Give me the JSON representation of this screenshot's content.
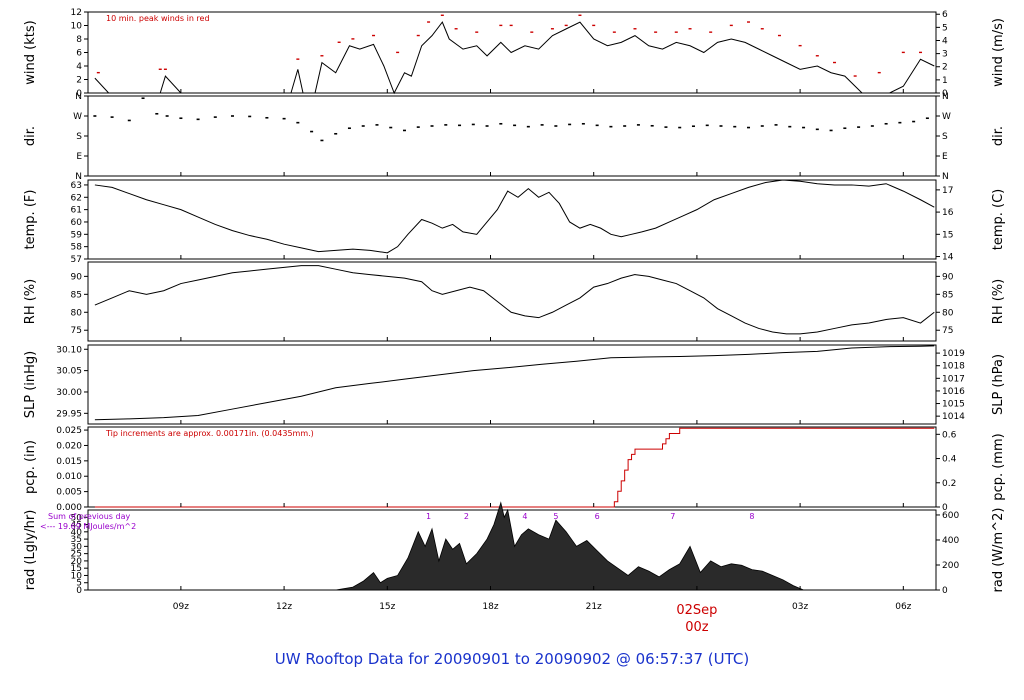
{
  "chart_data": {
    "type": "line",
    "title": "UW Rooftop Data for 20090901  to  20090902 @ 06:57:37  (UTC)",
    "x_ticks": [
      "09z",
      "12z",
      "15z",
      "18z",
      "21z",
      "02Sep",
      "03z",
      "06z"
    ],
    "x_sublabel": "00z",
    "panels": [
      {
        "id": "wind",
        "ylabel": "wind (kts)",
        "ylabel_right": "wind (m/s)",
        "ylim": [
          0,
          12
        ],
        "yticks": [
          0,
          2,
          4,
          6,
          8,
          10,
          12
        ],
        "yticks_right": [
          0,
          1,
          2,
          3,
          4,
          5,
          6
        ],
        "annotation": "10 min. peak winds in red",
        "series": [
          {
            "name": "wind",
            "color": "#000000",
            "x": [
              6.5,
              6.9,
              7.4,
              8.0,
              8.4,
              8.55,
              9.0,
              9.55,
              10.0,
              11.0,
              12.2,
              12.4,
              12.55,
              12.9,
              13.1,
              13.5,
              13.9,
              14.2,
              14.6,
              14.9,
              15.2,
              15.5,
              15.7,
              16.0,
              16.3,
              16.6,
              16.8,
              17.2,
              17.6,
              17.9,
              18.3,
              18.6,
              19.0,
              19.4,
              19.8,
              20.2,
              20.6,
              21.0,
              21.4,
              21.8,
              22.2,
              22.6,
              23.0,
              23.4,
              23.8,
              24.2,
              24.6,
              25.0,
              25.4,
              25.8,
              26.2,
              26.6,
              27.0,
              27.5,
              27.9,
              28.3,
              28.8,
              29.2,
              29.6,
              30.0,
              30.5,
              30.9
            ],
            "y": [
              2.2,
              0,
              0,
              0,
              0,
              2.5,
              0,
              0,
              0,
              0,
              0,
              3.5,
              0,
              0,
              4.5,
              3.0,
              7.0,
              6.5,
              7.2,
              4.0,
              0,
              3.0,
              2.5,
              7.0,
              8.5,
              10.5,
              8.0,
              6.5,
              7.0,
              5.5,
              7.5,
              6.0,
              7.0,
              6.5,
              8.5,
              9.5,
              10.5,
              8.0,
              7.0,
              7.5,
              8.5,
              7.0,
              6.5,
              7.5,
              7.0,
              6.0,
              7.5,
              8.0,
              7.5,
              6.5,
              5.5,
              4.5,
              3.5,
              4.0,
              3.0,
              2.5,
              0,
              0,
              0,
              1.0,
              5.0,
              4.0
            ]
          },
          {
            "name": "peak",
            "color": "#cc0000",
            "x": [
              6.6,
              8.4,
              8.55,
              12.4,
              13.1,
              13.6,
              14.0,
              14.6,
              15.3,
              15.9,
              16.2,
              16.6,
              17.0,
              17.6,
              18.3,
              18.6,
              19.2,
              19.8,
              20.2,
              20.6,
              21.0,
              21.6,
              22.2,
              22.8,
              23.4,
              23.8,
              24.4,
              25.0,
              25.5,
              25.9,
              26.4,
              27.0,
              27.5,
              28.0,
              28.6,
              29.3,
              30.0,
              30.5
            ],
            "y": [
              3.0,
              3.5,
              3.5,
              5.0,
              5.5,
              7.5,
              8.0,
              8.5,
              6.0,
              8.5,
              10.5,
              11.5,
              9.5,
              9.0,
              10.0,
              10.0,
              9.0,
              9.5,
              10.0,
              11.5,
              10.0,
              9.0,
              9.5,
              9.0,
              9.0,
              9.5,
              9.0,
              10.0,
              10.5,
              9.5,
              8.5,
              7.0,
              5.5,
              4.5,
              2.5,
              3.0,
              6.0,
              6.0
            ]
          }
        ]
      },
      {
        "id": "dir",
        "ylabel": "dir.",
        "ylabel_right": "dir.",
        "ylim": [
          0,
          360
        ],
        "yticks": [
          "N",
          "E",
          "S",
          "W",
          "N"
        ],
        "yticks_values": [
          0,
          90,
          180,
          270,
          360
        ],
        "series": [
          {
            "name": "direction",
            "color": "#000000",
            "x": [
              6.5,
              7.0,
              7.5,
              7.9,
              8.3,
              8.6,
              9.0,
              9.5,
              10.0,
              10.5,
              11.0,
              11.5,
              12.0,
              12.4,
              12.8,
              13.1,
              13.5,
              13.9,
              14.3,
              14.7,
              15.1,
              15.5,
              15.9,
              16.3,
              16.7,
              17.1,
              17.5,
              17.9,
              18.3,
              18.7,
              19.1,
              19.5,
              19.9,
              20.3,
              20.7,
              21.1,
              21.5,
              21.9,
              22.3,
              22.7,
              23.1,
              23.5,
              23.9,
              24.3,
              24.7,
              25.1,
              25.5,
              25.9,
              26.3,
              26.7,
              27.1,
              27.5,
              27.9,
              28.3,
              28.7,
              29.1,
              29.5,
              29.9,
              30.3,
              30.7
            ],
            "y": [
              270,
              265,
              250,
              350,
              280,
              270,
              260,
              255,
              265,
              270,
              268,
              262,
              258,
              240,
              200,
              160,
              190,
              215,
              225,
              230,
              218,
              205,
              220,
              225,
              230,
              228,
              232,
              225,
              235,
              228,
              222,
              230,
              225,
              232,
              235,
              228,
              222,
              225,
              230,
              226,
              220,
              218,
              224,
              228,
              225,
              222,
              218,
              225,
              230,
              222,
              218,
              210,
              205,
              215,
              220,
              225,
              235,
              240,
              245,
              260
            ]
          }
        ]
      },
      {
        "id": "temp",
        "ylabel": "temp. (F)",
        "ylabel_right": "temp. (C)",
        "ylim": [
          57,
          63.4
        ],
        "yticks": [
          57,
          58,
          59,
          60,
          61,
          62,
          63
        ],
        "yticks_right": [
          14,
          15,
          16,
          17
        ],
        "series": [
          {
            "name": "temperature",
            "color": "#000000",
            "x": [
              6.5,
              7.0,
              7.5,
              8.0,
              8.5,
              9.0,
              9.5,
              10.0,
              10.5,
              11.0,
              11.5,
              12.0,
              12.5,
              13.0,
              13.5,
              14.0,
              14.5,
              15.0,
              15.3,
              15.6,
              16.0,
              16.3,
              16.6,
              16.9,
              17.2,
              17.6,
              17.9,
              18.2,
              18.5,
              18.8,
              19.1,
              19.4,
              19.7,
              20.0,
              20.3,
              20.6,
              20.9,
              21.2,
              21.5,
              21.8,
              22.1,
              22.4,
              22.8,
              23.2,
              23.6,
              24.0,
              24.5,
              25.0,
              25.5,
              26.0,
              26.5,
              27.0,
              27.5,
              28.0,
              28.5,
              29.0,
              29.5,
              30.0,
              30.5,
              30.9
            ],
            "y": [
              63.0,
              62.8,
              62.3,
              61.8,
              61.4,
              61.0,
              60.4,
              59.8,
              59.3,
              58.9,
              58.6,
              58.2,
              57.9,
              57.6,
              57.7,
              57.8,
              57.7,
              57.5,
              58.0,
              59.0,
              60.2,
              59.9,
              59.5,
              59.8,
              59.2,
              59.0,
              60.0,
              61.0,
              62.5,
              62.0,
              62.7,
              62.0,
              62.4,
              61.5,
              60.0,
              59.5,
              59.8,
              59.5,
              59.0,
              58.8,
              59.0,
              59.2,
              59.5,
              60.0,
              60.5,
              61.0,
              61.8,
              62.3,
              62.8,
              63.2,
              63.4,
              63.3,
              63.1,
              63.0,
              63.0,
              62.9,
              63.1,
              62.5,
              61.8,
              61.2
            ]
          }
        ]
      },
      {
        "id": "rh",
        "ylabel": "RH (%)",
        "ylabel_right": "RH (%)",
        "ylim": [
          72,
          94
        ],
        "yticks": [
          75,
          80,
          85,
          90
        ],
        "yticks_right": [
          75,
          80,
          85,
          90
        ],
        "series": [
          {
            "name": "RH",
            "color": "#000000",
            "x": [
              6.5,
              7.0,
              7.5,
              8.0,
              8.5,
              9.0,
              9.5,
              10.0,
              10.5,
              11.0,
              11.5,
              12.0,
              12.5,
              13.0,
              13.5,
              14.0,
              14.5,
              15.0,
              15.5,
              16.0,
              16.3,
              16.6,
              17.0,
              17.4,
              17.8,
              18.2,
              18.6,
              19.0,
              19.4,
              19.8,
              20.2,
              20.6,
              21.0,
              21.4,
              21.8,
              22.2,
              22.6,
              23.0,
              23.4,
              23.8,
              24.2,
              24.6,
              25.0,
              25.4,
              25.8,
              26.2,
              26.6,
              27.0,
              27.5,
              28.0,
              28.5,
              29.0,
              29.5,
              30.0,
              30.5,
              30.9
            ],
            "y": [
              82,
              84,
              86,
              85,
              86,
              88,
              89,
              90,
              91,
              91.5,
              92,
              92.5,
              93,
              93,
              92,
              91,
              90.5,
              90,
              89.5,
              88.5,
              86,
              85,
              86,
              87,
              86,
              83,
              80,
              79,
              78.5,
              80,
              82,
              84,
              87,
              88,
              89.5,
              90.5,
              90,
              89,
              88,
              86,
              84,
              81,
              79,
              77,
              75.5,
              74.5,
              74,
              74,
              74.5,
              75.5,
              76.5,
              77,
              78,
              78.5,
              77,
              80
            ]
          }
        ]
      },
      {
        "id": "slp",
        "ylabel": "SLP (inHg)",
        "ylabel_right": "SLP (hPa)",
        "ylim": [
          29.925,
          30.11
        ],
        "yticks": [
          29.95,
          30.0,
          30.05,
          30.1
        ],
        "yticks_right": [
          1014,
          1015,
          1016,
          1017,
          1018,
          1019
        ],
        "series": [
          {
            "name": "SLP",
            "color": "#000000",
            "x": [
              6.5,
              7.5,
              8.5,
              9.5,
              10.5,
              11.5,
              12.5,
              13.5,
              14.5,
              15.5,
              16.5,
              17.5,
              18.5,
              19.5,
              20.5,
              21.5,
              22.5,
              23.5,
              24.5,
              25.5,
              26.5,
              27.5,
              28.5,
              29.5,
              30.5,
              30.9
            ],
            "y": [
              29.935,
              29.937,
              29.94,
              29.945,
              29.96,
              29.975,
              29.99,
              30.01,
              30.02,
              30.03,
              30.04,
              30.05,
              30.057,
              30.065,
              30.072,
              30.08,
              30.082,
              30.083,
              30.085,
              30.088,
              30.092,
              30.095,
              30.103,
              30.106,
              30.107,
              30.108
            ]
          }
        ]
      },
      {
        "id": "pcp",
        "ylabel": "pcp. (in)",
        "ylabel_right": "pcp. (mm)",
        "ylim": [
          0,
          0.026
        ],
        "yticks": [
          0.0,
          0.005,
          0.01,
          0.015,
          0.02,
          0.025
        ],
        "yticks_right": [
          0,
          0.2,
          0.4,
          0.6
        ],
        "annotation": "Tip increments are approx. 0.00171in. (0.0435mm.)",
        "series": [
          {
            "name": "precip",
            "color": "#cc0000",
            "x": [
              6.5,
              21.5,
              21.6,
              21.7,
              21.8,
              21.9,
              22.0,
              22.1,
              22.2,
              22.3,
              22.5,
              22.8,
              23.0,
              23.1,
              23.2,
              23.3,
              23.5,
              23.6,
              30.9
            ],
            "y": [
              0,
              0,
              0.0017,
              0.0051,
              0.0085,
              0.012,
              0.0154,
              0.0171,
              0.0188,
              0.0188,
              0.0188,
              0.0188,
              0.0205,
              0.0222,
              0.0239,
              0.0239,
              0.0256,
              0.0256,
              0.0256
            ]
          }
        ]
      },
      {
        "id": "rad",
        "ylabel": "rad (Lgly/hr)",
        "ylabel_right": "rad (W/m^2)",
        "ylim": [
          0,
          55
        ],
        "yticks": [
          0,
          5,
          10,
          15,
          20,
          25,
          30,
          35,
          40,
          45,
          50
        ],
        "yticks_right": [
          0,
          200,
          400,
          600
        ],
        "annotation_line1": "Sum of previous day",
        "annotation_line2": "<--- 19.69 MJoules/m^2",
        "hour_markers": [
          "1",
          "2",
          "3",
          "4",
          "5",
          "6",
          "7",
          "8"
        ],
        "hour_marker_x": [
          16.2,
          17.3,
          18.3,
          19.0,
          19.9,
          21.1,
          23.3,
          25.6
        ],
        "series": [
          {
            "name": "radiation",
            "color": "#000000",
            "x": [
              13.5,
              14.0,
              14.3,
              14.6,
              14.8,
              15.0,
              15.3,
              15.6,
              15.9,
              16.1,
              16.3,
              16.5,
              16.7,
              16.9,
              17.1,
              17.3,
              17.6,
              17.9,
              18.1,
              18.3,
              18.4,
              18.5,
              18.7,
              18.9,
              19.1,
              19.4,
              19.7,
              19.9,
              20.2,
              20.5,
              20.8,
              21.1,
              21.4,
              21.7,
              22.0,
              22.3,
              22.6,
              22.9,
              23.2,
              23.5,
              23.8,
              24.1,
              24.4,
              24.7,
              25.0,
              25.3,
              25.6,
              25.9,
              26.2,
              26.5,
              26.8,
              27.1
            ],
            "y": [
              0,
              2,
              6,
              12,
              5,
              8,
              10,
              22,
              40,
              30,
              42,
              20,
              35,
              28,
              32,
              18,
              25,
              35,
              45,
              60,
              50,
              55,
              30,
              38,
              42,
              38,
              35,
              48,
              40,
              30,
              34,
              27,
              20,
              15,
              10,
              16,
              13,
              9,
              14,
              18,
              30,
              12,
              20,
              16,
              18,
              17,
              14,
              13,
              10,
              7,
              3,
              0
            ]
          }
        ]
      }
    ]
  }
}
